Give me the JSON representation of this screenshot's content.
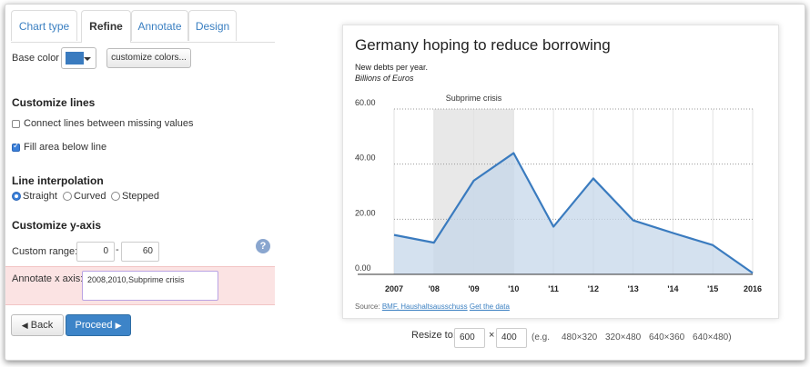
{
  "tabs": [
    "Chart type",
    "Refine",
    "Annotate",
    "Design"
  ],
  "active_tab": "Refine",
  "refine": {
    "base_color_label": "Base color",
    "base_color": "#3a7bbf",
    "customize_colors_label": "customize colors...",
    "customize_lines_title": "Customize lines",
    "connect_missing_label": "Connect lines between missing values",
    "connect_missing_checked": false,
    "fill_area_label": "Fill area below line",
    "fill_area_checked": true,
    "interpolation_title": "Line interpolation",
    "interpolation_options": [
      "Straight",
      "Curved",
      "Stepped"
    ],
    "interpolation_selected": "Straight",
    "yaxis_title": "Customize y-axis",
    "custom_range_label": "Custom range:",
    "range_min": "0",
    "range_sep": "-",
    "range_max": "60",
    "help_label": "?",
    "annotate_x_label": "Annotate x axis:",
    "annotate_x_value": "2008,2010,Subprime crisis"
  },
  "buttons": {
    "back": "Back",
    "proceed": "Proceed"
  },
  "chart_data": {
    "type": "area",
    "title": "Germany hoping to reduce borrowing",
    "subtitle": "New debts per year.",
    "unit_note": "Billions of Euros",
    "x": [
      2007,
      2008,
      2009,
      2010,
      2011,
      2012,
      2013,
      2014,
      2015,
      2016
    ],
    "x_tick_labels": [
      "2007",
      "'08",
      "'09",
      "'10",
      "'11",
      "'12",
      "'13",
      "'14",
      "'15",
      "2016"
    ],
    "values": [
      14.3,
      11.5,
      34,
      44,
      17.3,
      34.8,
      19.6,
      15,
      10.6,
      0.5
    ],
    "y_ticks": [
      "0.00",
      "20.00",
      "40.00",
      "60.00"
    ],
    "ylim": [
      0,
      60
    ],
    "highlight": {
      "from": 2008,
      "to": 2010,
      "label": "Subprime crisis"
    },
    "line_color": "#3a7bbf",
    "fill_color": "#c6d7ea",
    "highlight_color": "#e8e8e8",
    "grid": true
  },
  "source": {
    "prefix": "Source:",
    "name": "BMF, Haushaltsausschuss",
    "link": "Get the data"
  },
  "resize": {
    "label": "Resize to:",
    "width": "600",
    "times": "×",
    "height": "400",
    "eg": "(e.g.",
    "presets": [
      "480×320",
      "320×480",
      "640×360",
      "640×480)"
    ]
  }
}
